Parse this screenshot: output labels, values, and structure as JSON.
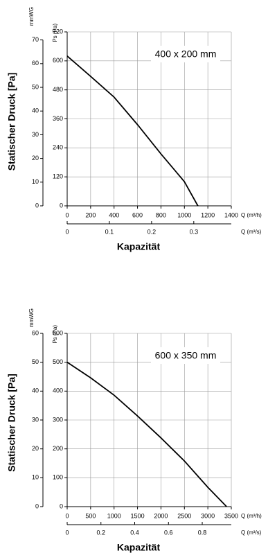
{
  "chart_data": [
    {
      "type": "line",
      "annotation": "400 x 200 mm",
      "ylabel": "Statischer Druck [Pa]",
      "ylabel_unit": "Ps (Pa)",
      "y2label": "mmWG",
      "xlabel": "Q (m³/h)",
      "x2label": "Q (m³/s)",
      "xtitle": "Kapazität",
      "x": [
        0,
        200,
        400,
        600,
        800,
        1000,
        1115
      ],
      "values": [
        620,
        536,
        450,
        336,
        215,
        100,
        0
      ],
      "color": "#000000",
      "xlim": [
        0,
        1400
      ],
      "xticks": [
        0,
        200,
        400,
        600,
        800,
        1000,
        1200,
        1400
      ],
      "x2lim": [
        0,
        0.3889
      ],
      "x2ticks": [
        0,
        0.1,
        0.2,
        0.3
      ],
      "ylim": [
        0,
        720
      ],
      "yticks": [
        0,
        120,
        240,
        360,
        480,
        600,
        720
      ],
      "y2lim": [
        0,
        73.4
      ],
      "y2ticks": [
        0,
        10,
        20,
        30,
        40,
        50,
        60,
        70
      ],
      "grid": true
    },
    {
      "type": "line",
      "annotation": "600 x 350 mm",
      "ylabel": "Statischer Druck [Pa]",
      "ylabel_unit": "Ps (Pa)",
      "y2label": "mmWG",
      "xlabel": "Q (m³/h)",
      "x2label": "Q (m³/s)",
      "xtitle": "Kapazität",
      "x": [
        0,
        500,
        1000,
        1500,
        2000,
        2500,
        3000,
        3400
      ],
      "values": [
        500,
        446,
        386,
        314,
        238,
        158,
        67,
        0
      ],
      "color": "#000000",
      "xlim": [
        0,
        3500
      ],
      "xticks": [
        0,
        500,
        1000,
        1500,
        2000,
        2500,
        3000,
        3500
      ],
      "x2lim": [
        0,
        0.9722
      ],
      "x2ticks": [
        0,
        0.2,
        0.4,
        0.6,
        0.8
      ],
      "ylim": [
        0,
        600
      ],
      "yticks": [
        0,
        100,
        200,
        300,
        400,
        500,
        600
      ],
      "y2lim": [
        0,
        60
      ],
      "y2ticks": [
        0,
        10,
        20,
        30,
        40,
        50,
        60
      ],
      "grid": true
    }
  ]
}
